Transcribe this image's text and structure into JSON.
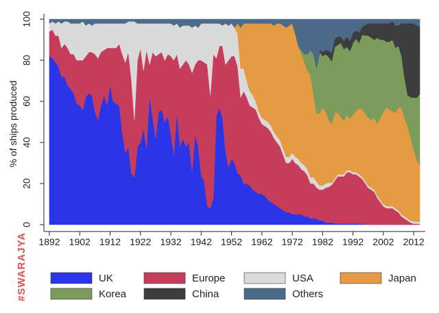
{
  "watermark": "#SWARAJYA",
  "chart_data": {
    "type": "area",
    "stacked": true,
    "ylabel": "% of ships produced",
    "xlabel": "",
    "xlim": [
      1892,
      2014
    ],
    "ylim": [
      0,
      100
    ],
    "xticks": [
      "1892",
      "1902",
      "1912",
      "1922",
      "1932",
      "1942",
      "1952",
      "1962",
      "1972",
      "1982",
      "1992",
      "2002",
      "2012"
    ],
    "yticks": [
      "0",
      "20",
      "40",
      "60",
      "80",
      "100"
    ],
    "legend_position": "bottom",
    "x": [
      1892,
      1893,
      1894,
      1895,
      1896,
      1897,
      1898,
      1899,
      1900,
      1901,
      1902,
      1903,
      1904,
      1905,
      1906,
      1907,
      1908,
      1909,
      1910,
      1911,
      1912,
      1913,
      1914,
      1915,
      1916,
      1917,
      1918,
      1919,
      1920,
      1921,
      1922,
      1923,
      1924,
      1925,
      1926,
      1927,
      1928,
      1929,
      1930,
      1931,
      1932,
      1933,
      1934,
      1935,
      1936,
      1937,
      1938,
      1939,
      1940,
      1941,
      1942,
      1943,
      1944,
      1945,
      1946,
      1947,
      1948,
      1949,
      1950,
      1951,
      1952,
      1953,
      1954,
      1955,
      1956,
      1957,
      1958,
      1959,
      1960,
      1961,
      1962,
      1963,
      1964,
      1965,
      1966,
      1967,
      1968,
      1969,
      1970,
      1971,
      1972,
      1973,
      1974,
      1975,
      1976,
      1977,
      1978,
      1979,
      1980,
      1981,
      1982,
      1983,
      1984,
      1985,
      1986,
      1987,
      1988,
      1989,
      1990,
      1991,
      1992,
      1993,
      1994,
      1995,
      1996,
      1997,
      1998,
      1999,
      2000,
      2001,
      2002,
      2003,
      2004,
      2005,
      2006,
      2007,
      2008,
      2009,
      2010,
      2011,
      2012,
      2013,
      2014
    ],
    "series": [
      {
        "name": "UK",
        "color": "#2b35e8",
        "values": [
          82,
          81,
          79,
          77,
          72,
          72,
          68,
          66,
          64,
          59,
          58,
          56,
          62,
          64,
          63,
          55,
          51,
          58,
          63,
          58,
          68,
          60,
          59,
          58,
          45,
          35,
          38,
          25,
          23,
          38,
          40,
          47,
          37,
          63,
          52,
          42,
          55,
          56,
          50,
          53,
          44,
          34,
          55,
          38,
          42,
          38,
          40,
          26,
          44,
          38,
          24,
          21,
          9,
          8,
          13,
          53,
          57,
          52,
          36,
          28,
          32,
          30,
          25,
          24,
          20,
          20,
          19,
          17,
          16,
          15,
          15,
          14,
          12,
          11,
          10,
          9,
          8,
          7,
          6,
          6,
          5,
          5,
          5,
          5,
          4,
          4,
          3,
          3,
          3,
          2,
          2,
          1,
          1,
          1,
          0.5,
          0.5,
          0.5,
          0.5,
          0.5,
          0.5,
          0.5,
          0.5,
          0.5,
          0.3,
          0.2,
          0,
          0,
          0,
          0,
          0,
          0,
          0,
          0,
          0,
          0,
          0,
          0,
          0,
          0,
          0,
          0,
          0,
          0
        ]
      },
      {
        "name": "Europe",
        "color": "#c63d5b",
        "values": [
          12,
          14,
          13,
          15,
          14,
          16,
          18,
          17,
          19,
          21,
          22,
          24,
          20,
          20,
          21,
          28,
          30,
          26,
          22,
          28,
          18,
          26,
          27,
          30,
          38,
          44,
          46,
          46,
          28,
          42,
          46,
          28,
          48,
          15,
          32,
          40,
          28,
          28,
          30,
          30,
          38,
          46,
          28,
          38,
          36,
          42,
          38,
          48,
          34,
          42,
          56,
          58,
          69,
          55,
          70,
          28,
          30,
          35,
          42,
          52,
          50,
          52,
          52,
          38,
          45,
          42,
          39,
          40,
          40,
          37,
          34,
          34,
          35,
          34,
          32,
          31,
          30,
          27,
          24,
          24,
          27,
          25,
          24,
          22,
          22,
          20,
          17,
          17,
          15,
          15,
          15,
          17,
          17,
          18,
          21,
          23,
          23,
          23,
          25,
          25,
          24,
          24,
          23,
          22,
          20,
          18,
          17,
          16,
          13,
          11,
          9,
          8,
          8,
          8,
          7,
          6,
          4,
          3,
          2,
          1,
          0.5,
          0.5,
          0.3
        ]
      },
      {
        "name": "USA",
        "color": "#dadada",
        "values": [
          4,
          4,
          6,
          7,
          12,
          11,
          13,
          15,
          15,
          18,
          18,
          19,
          15,
          14,
          13,
          15,
          17,
          14,
          13,
          12,
          12,
          12,
          12,
          10,
          15,
          19,
          15,
          28,
          48,
          18,
          12,
          23,
          13,
          20,
          14,
          16,
          15,
          14,
          18,
          15,
          16,
          17,
          15,
          20,
          19,
          17,
          19,
          22,
          19,
          16,
          18,
          19,
          20,
          35,
          15,
          17,
          11,
          10,
          20,
          17,
          16,
          14,
          16,
          14,
          11,
          8,
          7,
          6,
          4,
          3,
          3,
          3,
          3,
          3,
          3,
          3,
          3,
          3,
          3,
          3,
          3,
          3,
          3,
          3,
          3,
          3,
          3,
          3,
          3,
          2,
          2,
          2,
          2,
          1,
          1,
          1,
          1,
          1,
          1,
          1,
          1,
          1,
          1,
          1,
          1,
          1,
          1,
          1,
          1,
          1,
          1,
          1,
          1,
          1,
          1,
          1,
          1,
          1,
          1,
          1,
          1,
          1,
          1
        ]
      },
      {
        "name": "Japan",
        "color": "#e59a44",
        "values": [
          0,
          0,
          0,
          0,
          0,
          0,
          0,
          0,
          0,
          0,
          0,
          0,
          0,
          0,
          0,
          0,
          0,
          0,
          0,
          0,
          0,
          0,
          0,
          0,
          0,
          0,
          0,
          0,
          0,
          0,
          0,
          0,
          0,
          0,
          0,
          0,
          0,
          0,
          0,
          0,
          0,
          0,
          0,
          0,
          0,
          0,
          0,
          0,
          0,
          0,
          0,
          0,
          0,
          0,
          0,
          0,
          0,
          0,
          0,
          0,
          0,
          0,
          5,
          20,
          22,
          28,
          33,
          35,
          38,
          43,
          46,
          47,
          48,
          50,
          52,
          55,
          57,
          60,
          63,
          64,
          63,
          60,
          55,
          53,
          50,
          48,
          50,
          40,
          33,
          35,
          38,
          35,
          30,
          28,
          32,
          30,
          28,
          26,
          27,
          25,
          28,
          30,
          32,
          33,
          33,
          33,
          33,
          35,
          35,
          40,
          45,
          48,
          47,
          46,
          47,
          50,
          52,
          48,
          45,
          40,
          35,
          30,
          28
        ]
      },
      {
        "name": "Korea",
        "color": "#7b9c5a",
        "values": [
          0,
          0,
          0,
          0,
          0,
          0,
          0,
          0,
          0,
          0,
          0,
          0,
          0,
          0,
          0,
          0,
          0,
          0,
          0,
          0,
          0,
          0,
          0,
          0,
          0,
          0,
          0,
          0,
          0,
          0,
          0,
          0,
          0,
          0,
          0,
          0,
          0,
          0,
          0,
          0,
          0,
          0,
          0,
          0,
          0,
          0,
          0,
          0,
          0,
          0,
          0,
          0,
          0,
          0,
          0,
          0,
          0,
          0,
          0,
          0,
          0,
          0,
          0,
          0,
          0,
          0,
          0,
          0,
          0,
          0,
          0,
          0,
          0,
          0,
          0,
          0,
          0,
          0,
          0,
          0,
          0,
          0,
          0,
          2,
          4,
          8,
          12,
          20,
          22,
          30,
          25,
          28,
          30,
          30,
          32,
          33,
          36,
          35,
          33,
          33,
          35,
          35,
          32,
          36,
          38,
          40,
          40,
          38,
          42,
          38,
          35,
          32,
          33,
          35,
          32,
          30,
          25,
          20,
          15,
          20,
          25,
          30,
          35
        ]
      },
      {
        "name": "China",
        "color": "#3d3d3d",
        "values": [
          0,
          0,
          0,
          0,
          0,
          0,
          0,
          0,
          0,
          0,
          0,
          0,
          0,
          0,
          0,
          0,
          0,
          0,
          0,
          0,
          0,
          0,
          0,
          0,
          0,
          0,
          0,
          0,
          0,
          0,
          0,
          0,
          0,
          0,
          0,
          0,
          0,
          0,
          0,
          0,
          0,
          0,
          0,
          0,
          0,
          0,
          0,
          0,
          0,
          0,
          0,
          0,
          0,
          0,
          0,
          0,
          0,
          0,
          0,
          0,
          0,
          0,
          0,
          0,
          0,
          0,
          0,
          0,
          0,
          0,
          0,
          0,
          0,
          0,
          0,
          0,
          0,
          0,
          0,
          0,
          0,
          0,
          0,
          0,
          0,
          0,
          0,
          0,
          0.5,
          1,
          2,
          2,
          3,
          4,
          4,
          4,
          3,
          4,
          5,
          5,
          5,
          4,
          5,
          4,
          5,
          6,
          7,
          8,
          7,
          8,
          8,
          9,
          9,
          9,
          11,
          10,
          16,
          27,
          35,
          36,
          36,
          35,
          33
        ]
      },
      {
        "name": "Others",
        "color": "#4c6b8a",
        "values": [
          2,
          1,
          2,
          1,
          2,
          1,
          1,
          2,
          2,
          2,
          2,
          1,
          3,
          2,
          3,
          2,
          2,
          2,
          2,
          2,
          2,
          2,
          2,
          2,
          2,
          2,
          1,
          1,
          1,
          2,
          2,
          2,
          2,
          2,
          2,
          2,
          2,
          2,
          2,
          2,
          2,
          3,
          2,
          4,
          3,
          3,
          3,
          4,
          3,
          4,
          2,
          2,
          2,
          2,
          2,
          2,
          2,
          3,
          2,
          3,
          2,
          4,
          2,
          4,
          2,
          2,
          2,
          2,
          2,
          2,
          2,
          2,
          2,
          2,
          3,
          2,
          2,
          3,
          4,
          3,
          2,
          7,
          13,
          15,
          17,
          17,
          15,
          17,
          23,
          15,
          16,
          15,
          15,
          16,
          9.5,
          8.5,
          8.5,
          10.5,
          8.5,
          10.5,
          6.5,
          5.5,
          6.5,
          3.7,
          2.8,
          2,
          2,
          2,
          2,
          2,
          2,
          2,
          2,
          1,
          3,
          3,
          2,
          2,
          2,
          2,
          2,
          3,
          3.7
        ]
      }
    ]
  }
}
